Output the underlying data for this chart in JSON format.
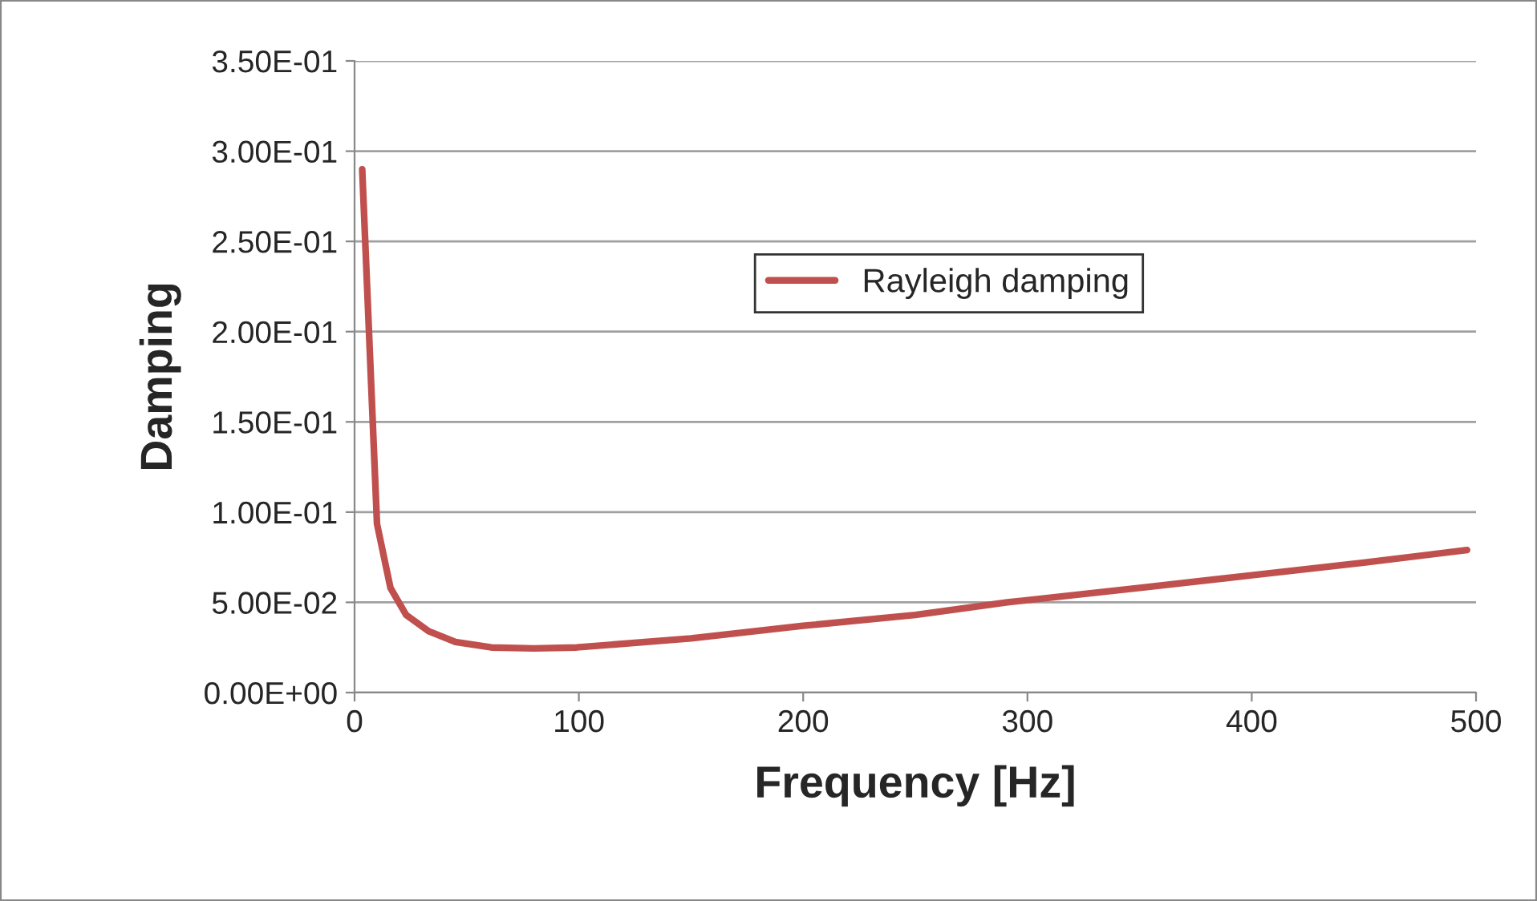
{
  "chart_data": {
    "type": "line",
    "xlabel": "Frequency [Hz]",
    "ylabel": "Damping",
    "series": [
      {
        "name": "Rayleigh damping",
        "color": "#c0504d",
        "x": [
          3.4,
          10,
          16,
          23,
          33,
          45,
          61,
          80,
          99,
          150,
          200,
          250,
          291,
          350,
          400,
          450,
          496
        ],
        "values": [
          0.29,
          0.0935,
          0.058,
          0.043,
          0.034,
          0.028,
          0.025,
          0.0245,
          0.025,
          0.03,
          0.037,
          0.043,
          0.05,
          0.058,
          0.065,
          0.072,
          0.079
        ]
      }
    ],
    "xlim": [
      0,
      500
    ],
    "xticks": [
      0,
      100,
      200,
      300,
      400,
      500
    ],
    "ylim": [
      0,
      0.35
    ],
    "yticks": [
      {
        "value": 0,
        "label": "0.00E+00"
      },
      {
        "value": 0.05,
        "label": "5.00E-02"
      },
      {
        "value": 0.1,
        "label": "1.00E-01"
      },
      {
        "value": 0.15,
        "label": "1.50E-01"
      },
      {
        "value": 0.2,
        "label": "2.00E-01"
      },
      {
        "value": 0.25,
        "label": "2.50E-01"
      },
      {
        "value": 0.3,
        "label": "3.00E-01"
      },
      {
        "value": 0.35,
        "label": "3.50E-01"
      }
    ],
    "grid": "y",
    "legend": "top",
    "marker": "none",
    "line_style": "solid"
  }
}
